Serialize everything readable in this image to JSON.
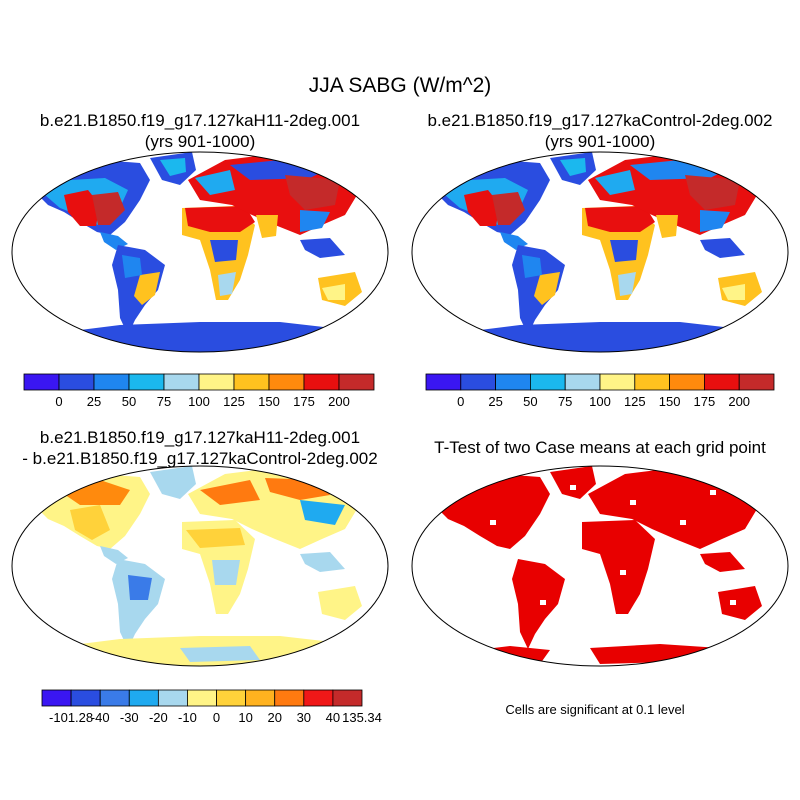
{
  "figure": {
    "title": "JJA SABG (W/m^2)",
    "panels": [
      {
        "id": "case",
        "title_lines": [
          "b.e21.B1850.f19_g17.127kaH11-2deg.001",
          "(yrs 901-1000)"
        ],
        "colorbar": {
          "colors": [
            "#3a16f2",
            "#2a4de0",
            "#1f86f0",
            "#1bb8ee",
            "#a8d8ee",
            "#fff487",
            "#ffc21f",
            "#ff8a0d",
            "#e80f0f",
            "#c42a2a"
          ],
          "labels": [
            "0",
            "25",
            "50",
            "75",
            "100",
            "125",
            "150",
            "175",
            "200"
          ]
        }
      },
      {
        "id": "control",
        "title_lines": [
          "b.e21.B1850.f19_g17.127kaControl-2deg.002",
          "(yrs 901-1000)"
        ],
        "colorbar": {
          "colors": [
            "#3a16f2",
            "#2a4de0",
            "#1f86f0",
            "#1bb8ee",
            "#a8d8ee",
            "#fff487",
            "#ffc21f",
            "#ff8a0d",
            "#e80f0f",
            "#c42a2a"
          ],
          "labels": [
            "0",
            "25",
            "50",
            "75",
            "100",
            "125",
            "150",
            "175",
            "200"
          ]
        }
      },
      {
        "id": "difference",
        "title_lines": [
          "b.e21.B1850.f19_g17.127kaH11-2deg.001",
          "- b.e21.B1850.f19_g17.127kaControl-2deg.002"
        ],
        "colorbar": {
          "colors": [
            "#3a16f2",
            "#2a4de0",
            "#3a7be8",
            "#1faaf0",
            "#a8d8ee",
            "#fff487",
            "#ffd23a",
            "#ffb21f",
            "#ff7a10",
            "#f01818",
            "#c42a2a"
          ],
          "labels": [
            "-101.28",
            "-40",
            "-30",
            "-20",
            "-10",
            "0",
            "10",
            "20",
            "30",
            "40",
            "135.34"
          ]
        }
      },
      {
        "id": "ttest",
        "title_lines": [
          "T-Test of two Case means at each grid point"
        ],
        "note": "Cells are significant at 0.1 level",
        "fill_color": "#e80000"
      }
    ]
  }
}
